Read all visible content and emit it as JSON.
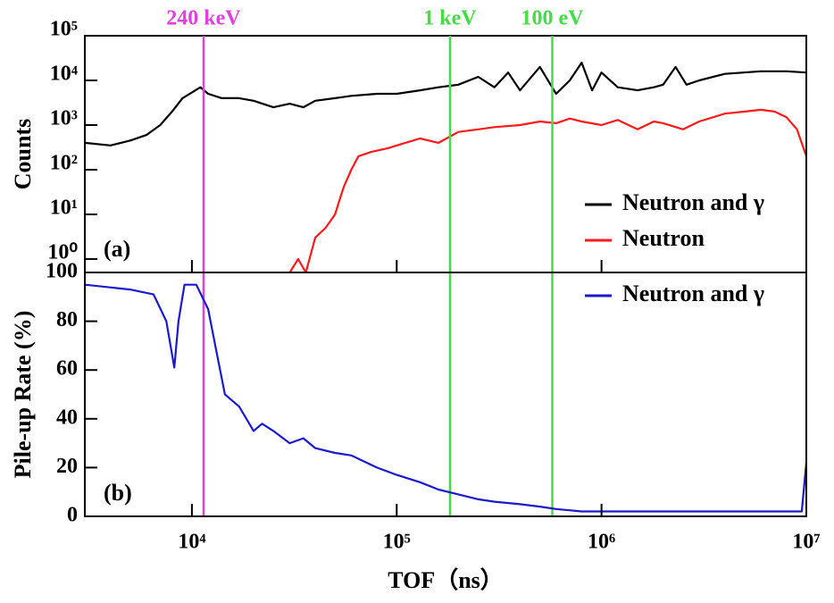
{
  "chart_data": [
    {
      "type": "line",
      "ylabel": "Counts",
      "panel_label": "(a)",
      "log_x": true,
      "log_y": true,
      "xlim": [
        3000,
        10000000
      ],
      "ylim": [
        0.5,
        100000
      ],
      "yticks": [
        {
          "value": 1,
          "label": "10⁰"
        },
        {
          "value": 10,
          "label": "10¹"
        },
        {
          "value": 100,
          "label": "10²"
        },
        {
          "value": 1000,
          "label": "10³"
        },
        {
          "value": 10000,
          "label": "10⁴"
        },
        {
          "value": 100000,
          "label": "10⁵"
        }
      ],
      "legend": "lower right",
      "annotations": [
        {
          "text": "240 keV",
          "x": 11400,
          "color": "#e040e0"
        },
        {
          "text": "1 keV",
          "x": 182000,
          "color": "#44dd44"
        },
        {
          "text": "100 eV",
          "x": 575000,
          "color": "#44dd44"
        }
      ],
      "series": [
        {
          "name": "Neutron and γ",
          "color": "#000000",
          "x": [
            3000,
            4000,
            5000,
            6000,
            7000,
            8000,
            9000,
            11000,
            12000,
            14000,
            17000,
            20000,
            25000,
            30000,
            35000,
            40000,
            50000,
            60000,
            80000,
            100000,
            130000,
            160000,
            200000,
            250000,
            300000,
            350000,
            400000,
            500000,
            600000,
            700000,
            800000,
            900000,
            1000000,
            1200000,
            1500000,
            1800000,
            2000000,
            2300000,
            2600000,
            3000000,
            4000000,
            6000000,
            8000000,
            10000000
          ],
          "values": [
            400,
            350,
            450,
            600,
            1000,
            2000,
            4000,
            7000,
            5000,
            4000,
            4000,
            3500,
            2500,
            3000,
            2500,
            3500,
            4000,
            4500,
            5000,
            5000,
            6000,
            7000,
            8000,
            12000,
            7000,
            15000,
            6000,
            20000,
            5000,
            10000,
            25000,
            6000,
            15000,
            7000,
            6000,
            7000,
            8000,
            20000,
            8000,
            10000,
            14000,
            16000,
            16000,
            15000
          ]
        },
        {
          "name": "Neutron",
          "color": "#ff1a1a",
          "x": [
            28000,
            33000,
            36000,
            40000,
            45000,
            50000,
            55000,
            60000,
            65000,
            75000,
            90000,
            110000,
            130000,
            160000,
            200000,
            250000,
            300000,
            400000,
            500000,
            600000,
            700000,
            800000,
            1000000,
            1200000,
            1500000,
            1800000,
            2000000,
            2500000,
            3000000,
            4000000,
            5000000,
            6000000,
            7000000,
            8000000,
            9000000,
            10000000
          ],
          "values": [
            0.3,
            1,
            0.5,
            3,
            5,
            10,
            40,
            100,
            200,
            250,
            300,
            400,
            500,
            400,
            700,
            800,
            900,
            1000,
            1200,
            1100,
            1400,
            1200,
            1000,
            1300,
            800,
            1200,
            1100,
            800,
            1200,
            1800,
            2000,
            2200,
            2000,
            1500,
            800,
            200
          ]
        }
      ]
    },
    {
      "type": "line",
      "ylabel": "Pile-up Rate (%)",
      "xlabel": "TOF（ns）",
      "panel_label": "(b)",
      "log_x": true,
      "log_y": false,
      "xlim": [
        3000,
        10000000
      ],
      "ylim": [
        0,
        100
      ],
      "xticks": [
        {
          "value": 10000,
          "label": "10⁴"
        },
        {
          "value": 100000,
          "label": "10⁵"
        },
        {
          "value": 1000000,
          "label": "10⁶"
        },
        {
          "value": 10000000,
          "label": "10⁷"
        }
      ],
      "yticks": [
        0,
        20,
        40,
        60,
        80,
        100
      ],
      "legend": "upper right",
      "series": [
        {
          "name": "Neutron and γ",
          "color": "#1a1acc",
          "x": [
            3000,
            5000,
            6500,
            7500,
            8200,
            8600,
            9200,
            10500,
            12000,
            13000,
            14500,
            17000,
            20000,
            22000,
            25000,
            30000,
            35000,
            40000,
            50000,
            60000,
            80000,
            100000,
            130000,
            160000,
            200000,
            250000,
            300000,
            400000,
            500000,
            600000,
            800000,
            1000000,
            2000000,
            4000000,
            7000000,
            9500000,
            10000000
          ],
          "values": [
            95,
            93,
            91,
            80,
            61,
            80,
            95,
            95,
            85,
            70,
            50,
            45,
            35,
            38,
            35,
            30,
            32,
            28,
            26,
            25,
            20,
            17,
            14,
            11,
            9,
            7,
            6,
            5,
            4,
            3,
            2,
            2,
            2,
            2,
            2,
            2,
            22
          ]
        }
      ]
    }
  ]
}
